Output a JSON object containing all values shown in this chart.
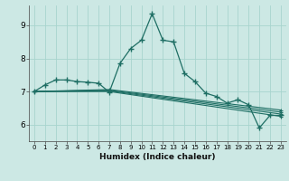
{
  "xlabel": "Humidex (Indice chaleur)",
  "bg_color": "#cce8e4",
  "line_color": "#1e6e64",
  "grid_color": "#a8d4ce",
  "xlim": [
    -0.5,
    23.5
  ],
  "ylim": [
    5.5,
    9.6
  ],
  "yticks": [
    6,
    7,
    8,
    9
  ],
  "xticks": [
    0,
    1,
    2,
    3,
    4,
    5,
    6,
    7,
    8,
    9,
    10,
    11,
    12,
    13,
    14,
    15,
    16,
    17,
    18,
    19,
    20,
    21,
    22,
    23
  ],
  "main_line": {
    "x": [
      0,
      1,
      2,
      3,
      4,
      5,
      6,
      7,
      8,
      9,
      10,
      11,
      12,
      13,
      14,
      15,
      16,
      17,
      18,
      19,
      20,
      21,
      22,
      23
    ],
    "y": [
      7.0,
      7.2,
      7.35,
      7.35,
      7.3,
      7.28,
      7.25,
      6.98,
      7.85,
      8.3,
      8.55,
      9.35,
      8.55,
      8.5,
      7.55,
      7.3,
      6.95,
      6.85,
      6.65,
      6.75,
      6.6,
      5.9,
      6.28,
      6.28
    ]
  },
  "trend_lines": [
    {
      "x": [
        0,
        7,
        23
      ],
      "y": [
        7.0,
        7.0,
        6.25
      ]
    },
    {
      "x": [
        0,
        7,
        23
      ],
      "y": [
        7.0,
        7.02,
        6.32
      ]
    },
    {
      "x": [
        0,
        7,
        23
      ],
      "y": [
        7.0,
        7.04,
        6.38
      ]
    },
    {
      "x": [
        0,
        7,
        23
      ],
      "y": [
        7.0,
        7.06,
        6.44
      ]
    }
  ]
}
